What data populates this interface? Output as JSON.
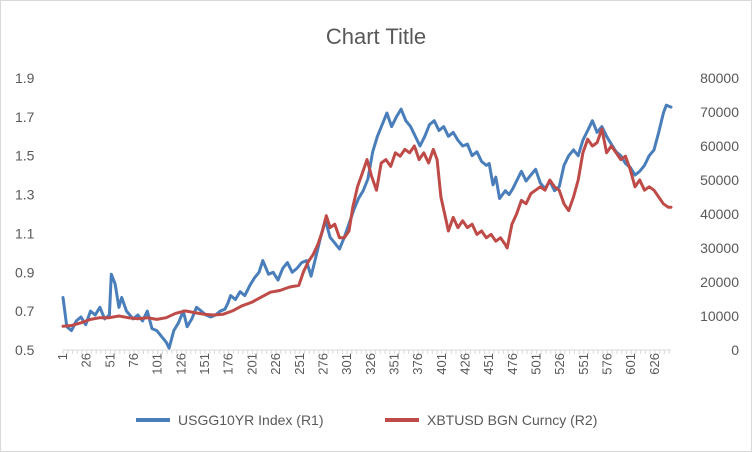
{
  "chart_data": {
    "type": "line",
    "title": "Chart Title",
    "x_tick_labels": [
      "1",
      "26",
      "51",
      "76",
      "101",
      "126",
      "151",
      "176",
      "201",
      "226",
      "251",
      "276",
      "301",
      "326",
      "351",
      "376",
      "401",
      "426",
      "451",
      "476",
      "501",
      "526",
      "551",
      "576",
      "601",
      "626"
    ],
    "x_range": [
      1,
      643
    ],
    "y_left": {
      "range": [
        0.5,
        1.9
      ],
      "ticks": [
        "0.5",
        "0.7",
        "0.9",
        "1.1",
        "1.3",
        "1.5",
        "1.7",
        "1.9"
      ]
    },
    "y_right": {
      "range": [
        0,
        80000
      ],
      "ticks": [
        "0",
        "10000",
        "20000",
        "30000",
        "40000",
        "50000",
        "60000",
        "70000",
        "80000"
      ]
    },
    "grid": false,
    "legend_position": "bottom",
    "series": [
      {
        "name": "USGG10YR Index  (R1)",
        "axis": "left",
        "color": "#4a7ebb",
        "points": [
          [
            1,
            0.77
          ],
          [
            5,
            0.62
          ],
          [
            10,
            0.6
          ],
          [
            15,
            0.65
          ],
          [
            20,
            0.67
          ],
          [
            25,
            0.63
          ],
          [
            30,
            0.7
          ],
          [
            35,
            0.68
          ],
          [
            40,
            0.72
          ],
          [
            45,
            0.66
          ],
          [
            50,
            0.68
          ],
          [
            52,
            0.89
          ],
          [
            56,
            0.84
          ],
          [
            60,
            0.72
          ],
          [
            63,
            0.77
          ],
          [
            68,
            0.7
          ],
          [
            75,
            0.66
          ],
          [
            80,
            0.68
          ],
          [
            85,
            0.65
          ],
          [
            90,
            0.7
          ],
          [
            95,
            0.61
          ],
          [
            100,
            0.6
          ],
          [
            105,
            0.57
          ],
          [
            110,
            0.54
          ],
          [
            113,
            0.51
          ],
          [
            118,
            0.6
          ],
          [
            123,
            0.64
          ],
          [
            128,
            0.7
          ],
          [
            132,
            0.62
          ],
          [
            137,
            0.66
          ],
          [
            142,
            0.72
          ],
          [
            147,
            0.7
          ],
          [
            152,
            0.68
          ],
          [
            157,
            0.67
          ],
          [
            162,
            0.68
          ],
          [
            167,
            0.7
          ],
          [
            172,
            0.71
          ],
          [
            175,
            0.74
          ],
          [
            178,
            0.78
          ],
          [
            183,
            0.76
          ],
          [
            188,
            0.8
          ],
          [
            193,
            0.78
          ],
          [
            198,
            0.83
          ],
          [
            203,
            0.87
          ],
          [
            208,
            0.9
          ],
          [
            212,
            0.96
          ],
          [
            218,
            0.89
          ],
          [
            223,
            0.9
          ],
          [
            228,
            0.86
          ],
          [
            233,
            0.92
          ],
          [
            238,
            0.95
          ],
          [
            243,
            0.9
          ],
          [
            248,
            0.92
          ],
          [
            253,
            0.95
          ],
          [
            258,
            0.96
          ],
          [
            263,
            0.88
          ],
          [
            268,
            0.98
          ],
          [
            273,
            1.08
          ],
          [
            278,
            1.17
          ],
          [
            283,
            1.08
          ],
          [
            288,
            1.05
          ],
          [
            293,
            1.02
          ],
          [
            298,
            1.08
          ],
          [
            303,
            1.15
          ],
          [
            308,
            1.22
          ],
          [
            313,
            1.28
          ],
          [
            318,
            1.32
          ],
          [
            323,
            1.38
          ],
          [
            328,
            1.52
          ],
          [
            333,
            1.6
          ],
          [
            338,
            1.66
          ],
          [
            343,
            1.72
          ],
          [
            348,
            1.65
          ],
          [
            353,
            1.7
          ],
          [
            358,
            1.74
          ],
          [
            363,
            1.68
          ],
          [
            368,
            1.65
          ],
          [
            373,
            1.6
          ],
          [
            378,
            1.55
          ],
          [
            383,
            1.6
          ],
          [
            388,
            1.66
          ],
          [
            393,
            1.68
          ],
          [
            398,
            1.63
          ],
          [
            403,
            1.65
          ],
          [
            408,
            1.6
          ],
          [
            413,
            1.62
          ],
          [
            418,
            1.58
          ],
          [
            423,
            1.55
          ],
          [
            428,
            1.56
          ],
          [
            433,
            1.5
          ],
          [
            438,
            1.52
          ],
          [
            443,
            1.47
          ],
          [
            448,
            1.45
          ],
          [
            451,
            1.46
          ],
          [
            455,
            1.35
          ],
          [
            458,
            1.39
          ],
          [
            462,
            1.28
          ],
          [
            468,
            1.32
          ],
          [
            472,
            1.3
          ],
          [
            476,
            1.33
          ],
          [
            480,
            1.37
          ],
          [
            485,
            1.42
          ],
          [
            490,
            1.37
          ],
          [
            495,
            1.4
          ],
          [
            500,
            1.43
          ],
          [
            505,
            1.36
          ],
          [
            510,
            1.33
          ],
          [
            515,
            1.37
          ],
          [
            520,
            1.32
          ],
          [
            525,
            1.34
          ],
          [
            530,
            1.45
          ],
          [
            535,
            1.5
          ],
          [
            540,
            1.53
          ],
          [
            545,
            1.5
          ],
          [
            550,
            1.58
          ],
          [
            555,
            1.63
          ],
          [
            560,
            1.68
          ],
          [
            565,
            1.62
          ],
          [
            570,
            1.65
          ],
          [
            575,
            1.6
          ],
          [
            580,
            1.56
          ],
          [
            585,
            1.52
          ],
          [
            590,
            1.5
          ],
          [
            595,
            1.46
          ],
          [
            600,
            1.44
          ],
          [
            605,
            1.4
          ],
          [
            610,
            1.42
          ],
          [
            615,
            1.45
          ],
          [
            620,
            1.5
          ],
          [
            625,
            1.53
          ],
          [
            630,
            1.62
          ],
          [
            635,
            1.72
          ],
          [
            638,
            1.76
          ],
          [
            643,
            1.75
          ]
        ]
      },
      {
        "name": "XBTUSD BGN Curncy  (R2)",
        "axis": "right",
        "color": "#be4b48",
        "points": [
          [
            1,
            7000
          ],
          [
            10,
            7200
          ],
          [
            20,
            8000
          ],
          [
            30,
            9000
          ],
          [
            40,
            9500
          ],
          [
            50,
            9500
          ],
          [
            60,
            10000
          ],
          [
            70,
            9500
          ],
          [
            80,
            9200
          ],
          [
            90,
            9500
          ],
          [
            100,
            9000
          ],
          [
            110,
            9500
          ],
          [
            120,
            10800
          ],
          [
            130,
            11500
          ],
          [
            140,
            11000
          ],
          [
            150,
            10500
          ],
          [
            160,
            10300
          ],
          [
            170,
            10500
          ],
          [
            180,
            11500
          ],
          [
            190,
            13000
          ],
          [
            200,
            14000
          ],
          [
            210,
            15500
          ],
          [
            220,
            17000
          ],
          [
            230,
            17500
          ],
          [
            240,
            18500
          ],
          [
            250,
            19000
          ],
          [
            255,
            23000
          ],
          [
            260,
            26000
          ],
          [
            265,
            28000
          ],
          [
            270,
            31000
          ],
          [
            275,
            35000
          ],
          [
            279,
            39500
          ],
          [
            283,
            36000
          ],
          [
            288,
            37000
          ],
          [
            293,
            33000
          ],
          [
            298,
            33000
          ],
          [
            303,
            35000
          ],
          [
            307,
            42000
          ],
          [
            312,
            48000
          ],
          [
            317,
            52000
          ],
          [
            322,
            56000
          ],
          [
            327,
            51000
          ],
          [
            332,
            47000
          ],
          [
            337,
            55000
          ],
          [
            342,
            56000
          ],
          [
            347,
            54000
          ],
          [
            352,
            58000
          ],
          [
            357,
            57000
          ],
          [
            362,
            59000
          ],
          [
            367,
            58000
          ],
          [
            372,
            60000
          ],
          [
            377,
            56000
          ],
          [
            382,
            58000
          ],
          [
            387,
            55000
          ],
          [
            392,
            59000
          ],
          [
            396,
            56000
          ],
          [
            400,
            45000
          ],
          [
            404,
            40000
          ],
          [
            408,
            35000
          ],
          [
            413,
            39000
          ],
          [
            418,
            36000
          ],
          [
            423,
            38000
          ],
          [
            428,
            36000
          ],
          [
            433,
            37000
          ],
          [
            438,
            34000
          ],
          [
            443,
            35000
          ],
          [
            448,
            33000
          ],
          [
            453,
            34000
          ],
          [
            458,
            32000
          ],
          [
            463,
            33000
          ],
          [
            468,
            31000
          ],
          [
            470,
            30000
          ],
          [
            475,
            37000
          ],
          [
            480,
            40000
          ],
          [
            485,
            44000
          ],
          [
            490,
            43000
          ],
          [
            495,
            46000
          ],
          [
            500,
            47000
          ],
          [
            505,
            48000
          ],
          [
            510,
            47000
          ],
          [
            515,
            50000
          ],
          [
            520,
            48000
          ],
          [
            525,
            47000
          ],
          [
            530,
            43000
          ],
          [
            535,
            41000
          ],
          [
            540,
            45000
          ],
          [
            545,
            50000
          ],
          [
            550,
            58000
          ],
          [
            555,
            62000
          ],
          [
            560,
            60000
          ],
          [
            565,
            61000
          ],
          [
            570,
            65000
          ],
          [
            575,
            58000
          ],
          [
            580,
            60000
          ],
          [
            585,
            58000
          ],
          [
            590,
            56000
          ],
          [
            595,
            57000
          ],
          [
            600,
            53000
          ],
          [
            605,
            48000
          ],
          [
            610,
            50000
          ],
          [
            615,
            47000
          ],
          [
            620,
            48000
          ],
          [
            625,
            47000
          ],
          [
            630,
            45000
          ],
          [
            635,
            43000
          ],
          [
            640,
            42000
          ],
          [
            643,
            42000
          ]
        ]
      }
    ]
  }
}
